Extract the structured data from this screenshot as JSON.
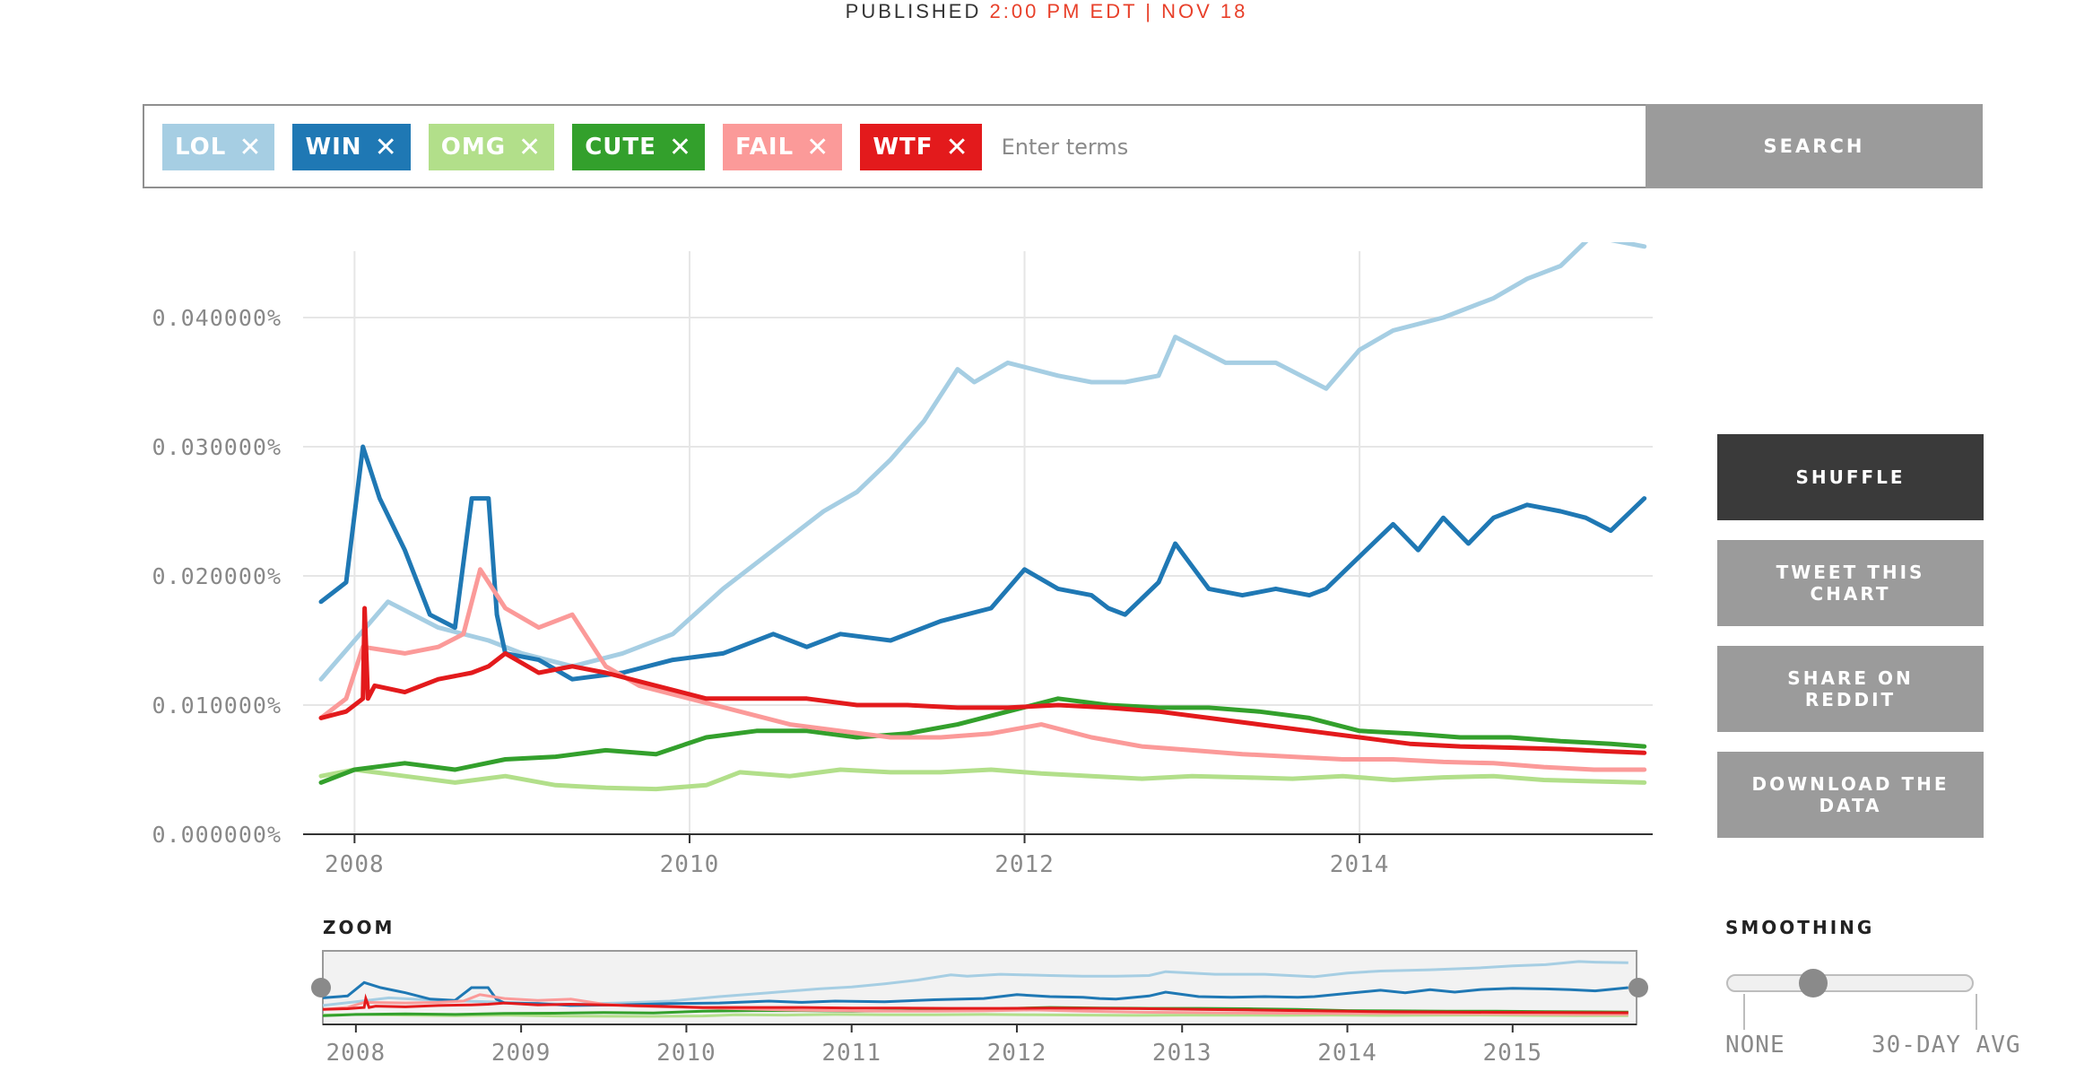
{
  "header": {
    "published_label": "PUBLISHED",
    "published_time": "2:00 PM EDT | NOV 18"
  },
  "search": {
    "placeholder": "Enter terms",
    "button_label": "SEARCH",
    "tags": [
      {
        "label": "LOL",
        "color": "#a6cee3",
        "close_icon": "close-icon"
      },
      {
        "label": "WIN",
        "color": "#1f78b4",
        "close_icon": "close-icon"
      },
      {
        "label": "OMG",
        "color": "#b2df8a",
        "close_icon": "close-icon"
      },
      {
        "label": "CUTE",
        "color": "#33a02c",
        "close_icon": "close-icon"
      },
      {
        "label": "FAIL",
        "color": "#fb9a99",
        "close_icon": "close-icon"
      },
      {
        "label": "WTF",
        "color": "#e31a1c",
        "close_icon": "close-icon"
      }
    ]
  },
  "actions": {
    "shuffle": "SHUFFLE",
    "tweet": "TWEET THIS CHART",
    "reddit": "SHARE ON REDDIT",
    "download": "DOWNLOAD THE DATA"
  },
  "zoom": {
    "label": "ZOOM"
  },
  "smoothing": {
    "label": "SMOOTHING",
    "min_label": "NONE",
    "max_label": "30-DAY AVG",
    "value": 0.3
  },
  "chart_data": {
    "type": "line",
    "title": "",
    "xlabel": "",
    "ylabel": "",
    "xlim": [
      2007.8,
      2015.75
    ],
    "ylim": [
      0,
      0.045
    ],
    "y_ticks": [
      "0.000000%",
      "0.010000%",
      "0.020000%",
      "0.030000%",
      "0.040000%"
    ],
    "y_tick_values": [
      0,
      0.01,
      0.02,
      0.03,
      0.04
    ],
    "x_ticks": [
      "2008",
      "2010",
      "2012",
      "2014"
    ],
    "x_tick_values": [
      2008,
      2010,
      2012,
      2014
    ],
    "grid": true,
    "legend": "tags above chart",
    "series": [
      {
        "name": "LOL",
        "color": "#a6cee3",
        "x": [
          2007.8,
          2008.0,
          2008.2,
          2008.5,
          2008.8,
          2009.0,
          2009.3,
          2009.6,
          2009.9,
          2010.2,
          2010.5,
          2010.8,
          2011.0,
          2011.2,
          2011.4,
          2011.6,
          2011.7,
          2011.9,
          2012.2,
          2012.4,
          2012.6,
          2012.8,
          2012.9,
          2013.2,
          2013.5,
          2013.8,
          2014.0,
          2014.2,
          2014.5,
          2014.8,
          2015.0,
          2015.2,
          2015.4,
          2015.5,
          2015.7
        ],
        "y": [
          0.012,
          0.015,
          0.018,
          0.016,
          0.015,
          0.014,
          0.013,
          0.014,
          0.0155,
          0.019,
          0.022,
          0.025,
          0.0265,
          0.029,
          0.032,
          0.036,
          0.035,
          0.0365,
          0.0355,
          0.035,
          0.035,
          0.0355,
          0.0385,
          0.0365,
          0.0365,
          0.0345,
          0.0375,
          0.039,
          0.04,
          0.0415,
          0.043,
          0.044,
          0.0465,
          0.046,
          0.0455
        ]
      },
      {
        "name": "WIN",
        "color": "#1f78b4",
        "x": [
          2007.8,
          2007.95,
          2008.05,
          2008.15,
          2008.3,
          2008.45,
          2008.6,
          2008.7,
          2008.8,
          2008.85,
          2008.9,
          2009.1,
          2009.3,
          2009.6,
          2009.9,
          2010.2,
          2010.5,
          2010.7,
          2010.9,
          2011.2,
          2011.5,
          2011.8,
          2012.0,
          2012.2,
          2012.4,
          2012.5,
          2012.6,
          2012.8,
          2012.9,
          2013.1,
          2013.3,
          2013.5,
          2013.7,
          2013.8,
          2014.0,
          2014.2,
          2014.35,
          2014.5,
          2014.65,
          2014.8,
          2015.0,
          2015.2,
          2015.35,
          2015.5,
          2015.7
        ],
        "y": [
          0.018,
          0.0195,
          0.03,
          0.026,
          0.022,
          0.017,
          0.016,
          0.026,
          0.026,
          0.017,
          0.014,
          0.0135,
          0.012,
          0.0125,
          0.0135,
          0.014,
          0.0155,
          0.0145,
          0.0155,
          0.015,
          0.0165,
          0.0175,
          0.0205,
          0.019,
          0.0185,
          0.0175,
          0.017,
          0.0195,
          0.0225,
          0.019,
          0.0185,
          0.019,
          0.0185,
          0.019,
          0.0215,
          0.024,
          0.022,
          0.0245,
          0.0225,
          0.0245,
          0.0255,
          0.025,
          0.0245,
          0.0235,
          0.026
        ]
      },
      {
        "name": "OMG",
        "color": "#b2df8a",
        "x": [
          2007.8,
          2008.0,
          2008.3,
          2008.6,
          2008.9,
          2009.2,
          2009.5,
          2009.8,
          2010.1,
          2010.3,
          2010.6,
          2010.9,
          2011.2,
          2011.5,
          2011.8,
          2012.1,
          2012.4,
          2012.7,
          2013.0,
          2013.3,
          2013.6,
          2013.9,
          2014.2,
          2014.5,
          2014.8,
          2015.1,
          2015.4,
          2015.7
        ],
        "y": [
          0.0045,
          0.005,
          0.0045,
          0.004,
          0.0045,
          0.0038,
          0.0036,
          0.0035,
          0.0038,
          0.0048,
          0.0045,
          0.005,
          0.0048,
          0.0048,
          0.005,
          0.0047,
          0.0045,
          0.0043,
          0.0045,
          0.0044,
          0.0043,
          0.0045,
          0.0042,
          0.0044,
          0.0045,
          0.0042,
          0.0041,
          0.004
        ]
      },
      {
        "name": "CUTE",
        "color": "#33a02c",
        "x": [
          2007.8,
          2008.0,
          2008.3,
          2008.6,
          2008.9,
          2009.2,
          2009.5,
          2009.8,
          2010.1,
          2010.4,
          2010.7,
          2011.0,
          2011.3,
          2011.6,
          2011.9,
          2012.2,
          2012.5,
          2012.8,
          2013.1,
          2013.4,
          2013.7,
          2014.0,
          2014.3,
          2014.6,
          2014.9,
          2015.2,
          2015.5,
          2015.7
        ],
        "y": [
          0.004,
          0.005,
          0.0055,
          0.005,
          0.0058,
          0.006,
          0.0065,
          0.0062,
          0.0075,
          0.008,
          0.008,
          0.0075,
          0.0078,
          0.0085,
          0.0095,
          0.0105,
          0.01,
          0.0098,
          0.0098,
          0.0095,
          0.009,
          0.008,
          0.0078,
          0.0075,
          0.0075,
          0.0072,
          0.007,
          0.0068
        ]
      },
      {
        "name": "FAIL",
        "color": "#fb9a99",
        "x": [
          2007.8,
          2007.95,
          2008.05,
          2008.3,
          2008.5,
          2008.65,
          2008.75,
          2008.9,
          2009.1,
          2009.3,
          2009.5,
          2009.7,
          2010.0,
          2010.3,
          2010.6,
          2010.9,
          2011.2,
          2011.5,
          2011.8,
          2012.1,
          2012.4,
          2012.7,
          2013.0,
          2013.3,
          2013.6,
          2013.9,
          2014.2,
          2014.5,
          2014.8,
          2015.1,
          2015.4,
          2015.7
        ],
        "y": [
          0.009,
          0.0105,
          0.0145,
          0.014,
          0.0145,
          0.0155,
          0.0205,
          0.0175,
          0.016,
          0.017,
          0.013,
          0.0115,
          0.0105,
          0.0095,
          0.0085,
          0.008,
          0.0075,
          0.0075,
          0.0078,
          0.0085,
          0.0075,
          0.0068,
          0.0065,
          0.0062,
          0.006,
          0.0058,
          0.0058,
          0.0056,
          0.0055,
          0.0052,
          0.005,
          0.005
        ]
      },
      {
        "name": "WTF",
        "color": "#e31a1c",
        "x": [
          2007.8,
          2007.95,
          2008.05,
          2008.06,
          2008.08,
          2008.12,
          2008.3,
          2008.5,
          2008.7,
          2008.8,
          2008.9,
          2009.1,
          2009.3,
          2009.5,
          2009.8,
          2010.1,
          2010.4,
          2010.7,
          2011.0,
          2011.3,
          2011.6,
          2011.9,
          2012.2,
          2012.5,
          2012.8,
          2013.1,
          2013.4,
          2013.7,
          2014.0,
          2014.3,
          2014.6,
          2014.9,
          2015.2,
          2015.5,
          2015.7
        ],
        "y": [
          0.009,
          0.0095,
          0.0105,
          0.0175,
          0.0105,
          0.0115,
          0.011,
          0.012,
          0.0125,
          0.013,
          0.014,
          0.0125,
          0.013,
          0.0125,
          0.0115,
          0.0105,
          0.0105,
          0.0105,
          0.01,
          0.01,
          0.0098,
          0.0098,
          0.01,
          0.0098,
          0.0095,
          0.009,
          0.0085,
          0.008,
          0.0075,
          0.007,
          0.0068,
          0.0067,
          0.0066,
          0.0064,
          0.0063
        ]
      }
    ],
    "zoom_x_ticks": [
      "2008",
      "2009",
      "2010",
      "2011",
      "2012",
      "2013",
      "2014",
      "2015"
    ],
    "zoom_x_tick_values": [
      2008,
      2009,
      2010,
      2011,
      2012,
      2013,
      2014,
      2015
    ]
  }
}
